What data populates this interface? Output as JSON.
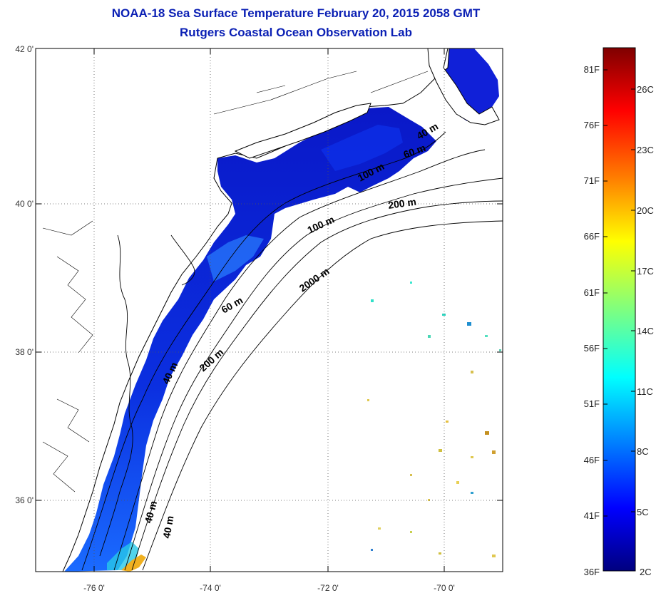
{
  "header": {
    "title": "NOAA-18 Sea Surface Temperature February 20, 2015 2058 GMT",
    "subtitle": "Rutgers Coastal Ocean Observation Lab"
  },
  "map": {
    "lon_ticks": [
      "-76 0'",
      "-74 0'",
      "-72 0'",
      "-70 0'"
    ],
    "lat_ticks": [
      "42 0'",
      "40 0'",
      "38 0'",
      "36 0'"
    ],
    "isobath_labels": [
      "40 m",
      "60 m",
      "100 m",
      "200 m",
      "2000 m",
      "200 m",
      "60 m",
      "40 m",
      "40 m",
      "100 m",
      "40 m"
    ],
    "colors": {
      "land": "#ffffff",
      "coast": "#000000",
      "grid": "#555555"
    }
  },
  "colorbar": {
    "fahrenheit": [
      "81F",
      "76F",
      "71F",
      "66F",
      "61F",
      "56F",
      "51F",
      "46F",
      "41F",
      "36F"
    ],
    "celsius": [
      "26C",
      "23C",
      "20C",
      "17C",
      "14C",
      "11C",
      "8C",
      "5C",
      "2C"
    ],
    "gradient": [
      "#00007f",
      "#0000ff",
      "#007fff",
      "#00ffff",
      "#7fff7f",
      "#ffff00",
      "#ff7f00",
      "#ff0000",
      "#7f0000"
    ]
  }
}
